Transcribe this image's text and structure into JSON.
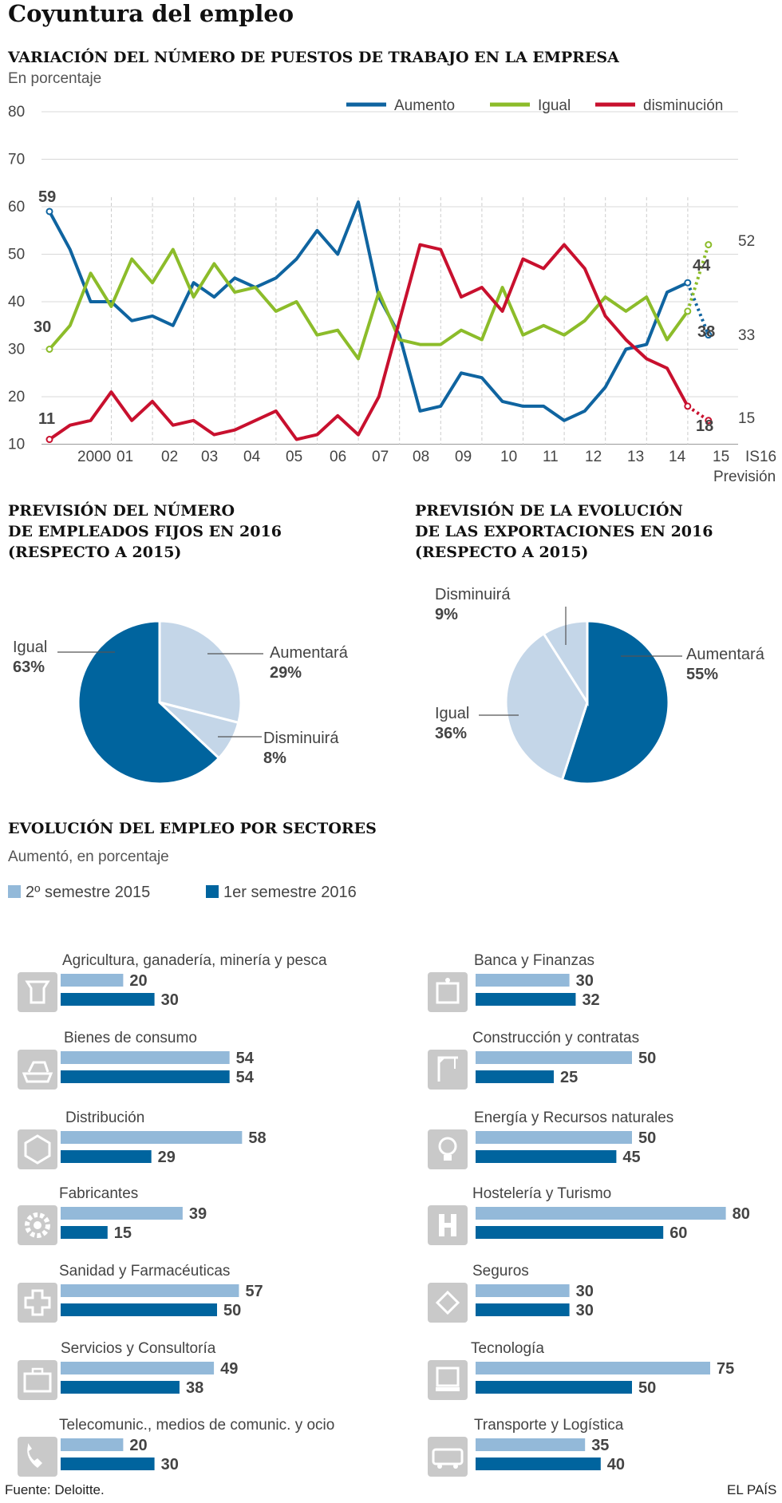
{
  "title": "Coyuntura del empleo",
  "line_section": {
    "title": "VARIACIÓN DEL NÚMERO DE PUESTOS DE TRABAJO EN LA EMPRESA",
    "subtitle": "En porcentaje"
  },
  "pie1": {
    "title": "PREVISIÓN DEL NÚMERO\nDE EMPLEADOS FIJOS EN 2016\n(RESPECTO A 2015)",
    "slices": [
      {
        "label": "Aumentará",
        "value": 29,
        "text": "29%",
        "color": "#c4d6e8"
      },
      {
        "label": "Disminuirá",
        "value": 8,
        "text": "8%",
        "color": "#c4d6e8"
      },
      {
        "label": "Igual",
        "value": 63,
        "text": "63%",
        "color": "#00649e"
      }
    ]
  },
  "pie2": {
    "title": "PREVISIÓN DE LA EVOLUCIÓN\nDE LAS EXPORTACIONES EN 2016\n(RESPECTO A 2015)",
    "slices": [
      {
        "label": "Aumentará",
        "value": 55,
        "text": "55%",
        "color": "#00649e"
      },
      {
        "label": "Igual",
        "value": 36,
        "text": "36%",
        "color": "#c4d6e8"
      },
      {
        "label": "Disminuirá",
        "value": 9,
        "text": "9%",
        "color": "#c4d6e8"
      }
    ]
  },
  "sectors": {
    "title": "EVOLUCIÓN DEL EMPLEO POR SECTORES",
    "subtitle": "Aumentó, en porcentaje",
    "legend": [
      "2º semestre 2015",
      "1er semestre 2016"
    ],
    "colors": [
      "#93b9d9",
      "#00649e"
    ]
  },
  "source": "Fuente: Deloitte.",
  "brand": "EL PAÍS",
  "chart_data": [
    {
      "type": "line",
      "title": "VARIACIÓN DEL NÚMERO DE PUESTOS DE TRABAJO EN LA EMPRESA",
      "ylabel": "En porcentaje",
      "ylim": [
        10,
        80
      ],
      "yticks": [
        "80",
        "70",
        "60",
        "50",
        "40",
        "30",
        "20",
        "10"
      ],
      "x_tick_labels": [
        "2000",
        "01",
        "02",
        "03",
        "04",
        "05",
        "06",
        "07",
        "08",
        "09",
        "10",
        "11",
        "12",
        "13",
        "14",
        "15",
        "IS16",
        "Previsión"
      ],
      "series": [
        {
          "name": "Aumento",
          "color": "#0f64a0",
          "values": [
            59,
            51,
            40,
            40,
            36,
            37,
            35,
            44,
            41,
            45,
            43,
            45,
            49,
            55,
            50,
            61,
            41,
            33,
            17,
            18,
            25,
            24,
            19,
            18,
            18,
            15,
            17,
            22,
            30,
            31,
            42,
            44
          ],
          "forecast": 33
        },
        {
          "name": "Igual",
          "color": "#8cbc2a",
          "values": [
            30,
            35,
            46,
            39,
            49,
            44,
            51,
            41,
            48,
            42,
            43,
            38,
            40,
            33,
            34,
            28,
            42,
            32,
            31,
            31,
            34,
            32,
            43,
            33,
            35,
            33,
            36,
            41,
            38,
            41,
            32,
            38
          ],
          "forecast": 52
        },
        {
          "name": "disminución",
          "color": "#c8102e",
          "values": [
            11,
            14,
            15,
            21,
            15,
            19,
            14,
            15,
            12,
            13,
            15,
            17,
            11,
            12,
            16,
            12,
            20,
            36,
            52,
            51,
            41,
            43,
            38,
            49,
            47,
            52,
            47,
            37,
            32,
            28,
            26,
            18
          ],
          "forecast": 15
        }
      ],
      "annotations": [
        "59",
        "30",
        "11",
        "44",
        "38",
        "18",
        "52",
        "33",
        "15"
      ]
    },
    {
      "type": "bar",
      "title": "EVOLUCIÓN DEL EMPLEO POR SECTORES",
      "series_names": [
        "2º semestre 2015",
        "1er semestre 2016"
      ],
      "categories": [
        {
          "name": "Agricultura, ganadería, minería y pesca",
          "icon": "agriculture-icon",
          "values": [
            20,
            30
          ]
        },
        {
          "name": "Bienes de consumo",
          "icon": "consumer-goods-icon",
          "values": [
            54,
            54
          ]
        },
        {
          "name": "Distribución",
          "icon": "distribution-icon",
          "values": [
            58,
            29
          ]
        },
        {
          "name": "Fabricantes",
          "icon": "gear-icon",
          "values": [
            39,
            15
          ]
        },
        {
          "name": "Sanidad  y Farmacéuticas",
          "icon": "health-cross-icon",
          "values": [
            57,
            50
          ]
        },
        {
          "name": "Servicios  y Consultoría",
          "icon": "briefcase-icon",
          "values": [
            49,
            38
          ]
        },
        {
          "name": "Telecomunic., medios de comunic. y ocio",
          "icon": "phone-icon",
          "values": [
            20,
            30
          ]
        },
        {
          "name": "Banca y Finanzas",
          "icon": "bank-icon",
          "values": [
            30,
            32
          ]
        },
        {
          "name": "Construcción y contratas",
          "icon": "crane-icon",
          "values": [
            50,
            25
          ]
        },
        {
          "name": "Energía y Recursos naturales",
          "icon": "lightbulb-icon",
          "values": [
            50,
            45
          ]
        },
        {
          "name": "Hostelería  y Turismo",
          "icon": "hotel-icon",
          "values": [
            80,
            60
          ]
        },
        {
          "name": "Seguros",
          "icon": "insurance-icon",
          "values": [
            30,
            30
          ]
        },
        {
          "name": "Tecnología",
          "icon": "computer-icon",
          "values": [
            75,
            50
          ]
        },
        {
          "name": "Transporte  y Logística",
          "icon": "bus-icon",
          "values": [
            35,
            40
          ]
        }
      ]
    }
  ]
}
